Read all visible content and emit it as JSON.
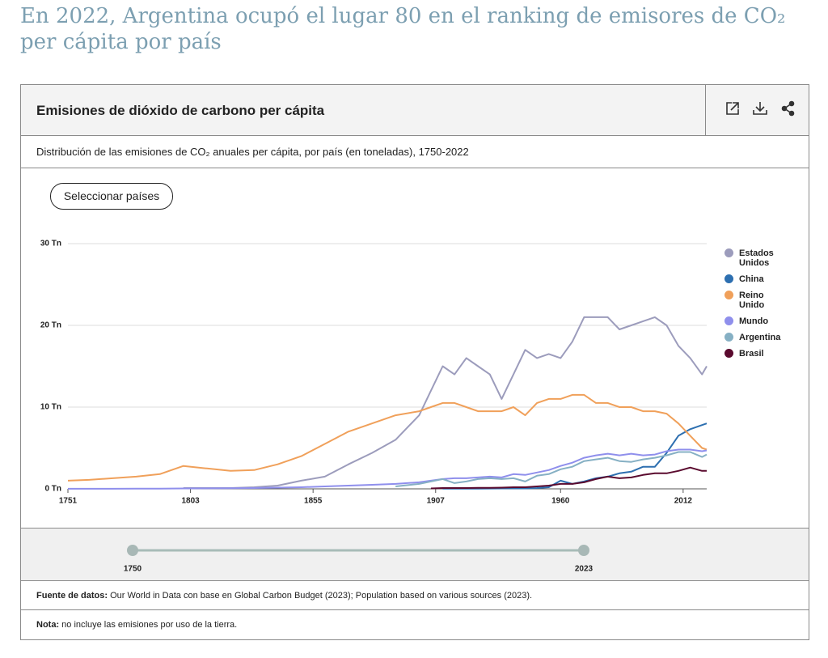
{
  "heading": "En 2022, Argentina ocupó el lugar 80 en el ranking de emisores de CO₂ per cápita por país",
  "button": "Seleccionar países",
  "slider": {
    "start": "1750",
    "end": "2023"
  },
  "source": {
    "label": "Fuente de datos:",
    "text": "Our World in Data con base en Global Carbon Budget (2023); Population based on various sources (2023)."
  },
  "note": {
    "label": "Nota:",
    "text": "no incluye las emisiones por uso de la tierra."
  },
  "chart_data": {
    "type": "line",
    "title": "Emisiones de dióxido de carbono per cápita",
    "subtitle": "Distribución de las emisiones de CO₂ anuales per cápita, por país (en toneladas), 1750-2022",
    "x": [
      1751,
      1760,
      1770,
      1780,
      1790,
      1800,
      1810,
      1820,
      1830,
      1840,
      1850,
      1860,
      1870,
      1880,
      1890,
      1900,
      1905,
      1910,
      1915,
      1920,
      1925,
      1930,
      1935,
      1940,
      1945,
      1950,
      1955,
      1960,
      1965,
      1970,
      1975,
      1980,
      1985,
      1990,
      1995,
      2000,
      2005,
      2010,
      2015,
      2020,
      2022
    ],
    "xlim": [
      1751,
      2022
    ],
    "xticks": [
      1751,
      1803,
      1855,
      1907,
      1960,
      2012
    ],
    "ylim": [
      0,
      30
    ],
    "yticks": [
      {
        "value": 0,
        "label": "0 Tn"
      },
      {
        "value": 10,
        "label": "10 Tn"
      },
      {
        "value": 20,
        "label": "20 Tn"
      },
      {
        "value": 30,
        "label": "30 Tn"
      }
    ],
    "grid": true,
    "legend": "right",
    "series": [
      {
        "name": "Estados Unidos",
        "color": "#9c9cbc",
        "values": [
          null,
          null,
          null,
          null,
          null,
          0.1,
          0.1,
          0.1,
          0.2,
          0.4,
          1.0,
          1.5,
          3.0,
          4.4,
          6.0,
          9.0,
          12.0,
          15.0,
          14.0,
          16.0,
          15.0,
          14.0,
          11.0,
          14.0,
          17.0,
          16.0,
          16.5,
          16.0,
          18.0,
          21.0,
          21.0,
          21.0,
          19.5,
          20.0,
          20.5,
          21.0,
          20.0,
          17.5,
          16.0,
          14.0,
          15.0
        ]
      },
      {
        "name": "China",
        "color": "#2d6fb0",
        "values": [
          null,
          null,
          null,
          null,
          null,
          null,
          null,
          null,
          null,
          null,
          null,
          null,
          null,
          null,
          null,
          null,
          null,
          0.02,
          0.02,
          0.03,
          0.03,
          0.04,
          0.05,
          0.06,
          0.05,
          0.1,
          0.2,
          1.0,
          0.6,
          0.9,
          1.3,
          1.5,
          1.9,
          2.1,
          2.7,
          2.7,
          4.4,
          6.5,
          7.3,
          7.8,
          8.0
        ]
      },
      {
        "name": "Reino Unido",
        "color": "#f0a05a",
        "values": [
          1.0,
          1.1,
          1.3,
          1.5,
          1.8,
          2.8,
          2.5,
          2.2,
          2.3,
          3.0,
          4.0,
          5.5,
          7.0,
          8.0,
          9.0,
          9.5,
          10.0,
          10.5,
          10.5,
          10.0,
          9.5,
          9.5,
          9.5,
          10.0,
          9.0,
          10.5,
          11.0,
          11.0,
          11.5,
          11.5,
          10.5,
          10.5,
          10.0,
          10.0,
          9.5,
          9.5,
          9.2,
          8.0,
          6.5,
          5.0,
          4.8
        ]
      },
      {
        "name": "Mundo",
        "color": "#8f8fec",
        "values": [
          0.01,
          0.01,
          0.01,
          0.02,
          0.03,
          0.05,
          0.06,
          0.08,
          0.1,
          0.15,
          0.2,
          0.3,
          0.4,
          0.5,
          0.6,
          0.8,
          1.0,
          1.2,
          1.3,
          1.3,
          1.4,
          1.5,
          1.4,
          1.8,
          1.7,
          2.0,
          2.3,
          2.8,
          3.2,
          3.8,
          4.1,
          4.3,
          4.1,
          4.3,
          4.1,
          4.2,
          4.6,
          4.8,
          4.8,
          4.6,
          4.7
        ]
      },
      {
        "name": "Argentina",
        "color": "#86b0c4",
        "values": [
          null,
          null,
          null,
          null,
          null,
          null,
          null,
          null,
          null,
          null,
          null,
          null,
          null,
          null,
          0.3,
          0.6,
          0.9,
          1.2,
          0.7,
          0.9,
          1.2,
          1.3,
          1.2,
          1.3,
          0.9,
          1.6,
          1.8,
          2.4,
          2.7,
          3.4,
          3.6,
          3.8,
          3.4,
          3.3,
          3.6,
          3.8,
          4.1,
          4.5,
          4.5,
          3.9,
          4.2
        ]
      },
      {
        "name": "Brasil",
        "color": "#5a0a2e",
        "values": [
          null,
          null,
          null,
          null,
          null,
          null,
          null,
          null,
          null,
          null,
          null,
          null,
          null,
          null,
          null,
          null,
          0.05,
          0.1,
          0.1,
          0.1,
          0.12,
          0.13,
          0.15,
          0.2,
          0.2,
          0.3,
          0.4,
          0.6,
          0.6,
          0.8,
          1.2,
          1.5,
          1.3,
          1.4,
          1.7,
          1.9,
          1.9,
          2.2,
          2.6,
          2.2,
          2.2
        ]
      }
    ]
  }
}
